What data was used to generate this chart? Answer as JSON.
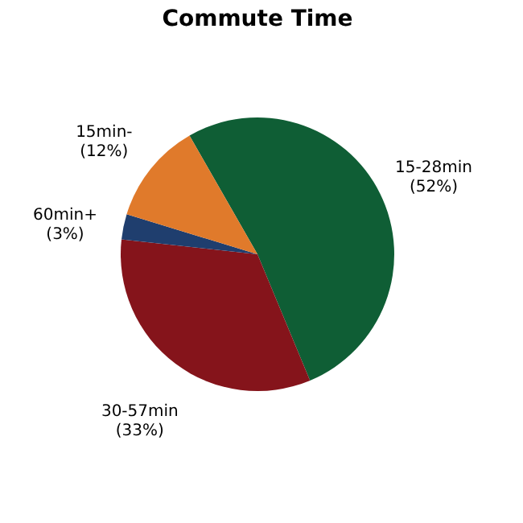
{
  "chart_data": {
    "type": "pie",
    "title": "Commute Time",
    "categories": [
      "15-28min",
      "30-57min",
      "60min+",
      "15min-"
    ],
    "values": [
      52,
      33,
      3,
      12
    ],
    "colors": [
      "#0f5e35",
      "#85141b",
      "#1f3e6e",
      "#e07a2b"
    ],
    "value_labels": [
      "(52%)",
      "(33%)",
      "(3%)",
      "(12%)"
    ],
    "legend": false
  }
}
